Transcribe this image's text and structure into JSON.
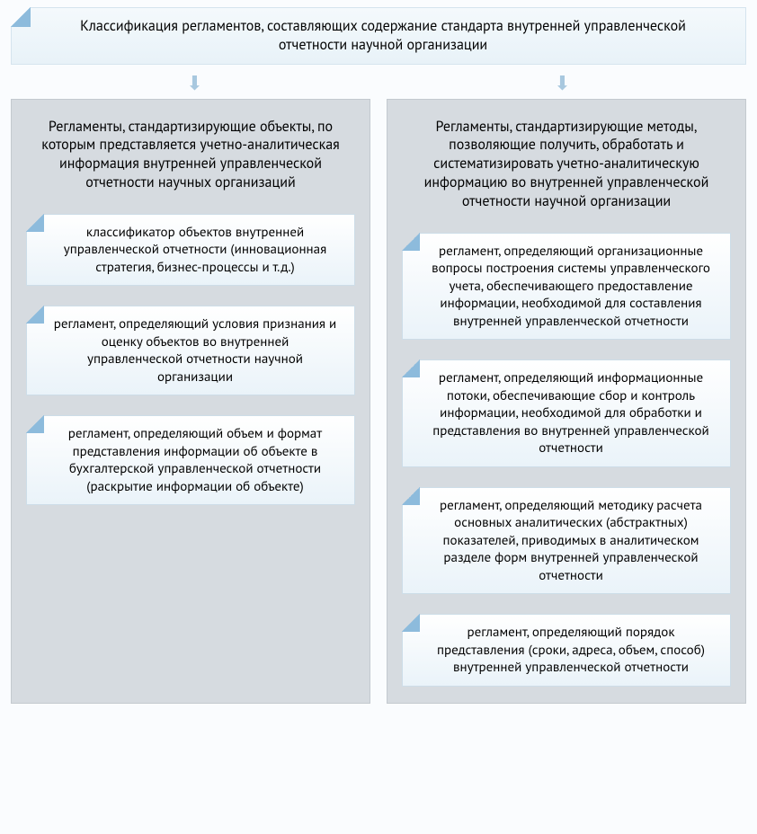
{
  "diagram": {
    "type": "tree",
    "background_color": "#fafcfe",
    "top_box": {
      "text": "Классификация регламентов, составляющих содержание стандарта внутренней управленческой отчетности научной организации",
      "bg_gradient": [
        "#f4f9fc",
        "#e8f2f8"
      ],
      "border_color": "#d5e4ee",
      "corner_color": "#8dbbdc",
      "font_size": 16
    },
    "arrow_color": "#a8c8df",
    "column_bg": "#d6dbe0",
    "column_border": "#c3c9cf",
    "item_bg_gradient": [
      "#ffffff",
      "#eaf3f9"
    ],
    "item_border": "#cddde8",
    "item_corner_color": "#8dbbdc",
    "item_font_size": 15,
    "columns": [
      {
        "header": "Регламенты, стандартизирующие объекты, по которым представляется учетно-аналитическая информация внутренней управленческой отчетности научных организаций",
        "items": [
          "классификатор объектов внутренней управленческой отчетности (инновационная стратегия, бизнес-процессы и т.д.)",
          "регламент, определяющий условия признания и оценку объектов во внутренней управленческой отчетности научной организации",
          "регламент, определяющий объем и формат представления информации об объекте в бухгалтерской управленческой отчетности (раскрытие информации об объекте)"
        ]
      },
      {
        "header": "Регламенты, стандартизирующие методы, позволяющие получить, обработать и систематизировать учетно-аналитическую информацию во внутренней управленческой отчетности научной организации",
        "items": [
          "регламент, определяющий организационные вопросы построения системы управленческого учета, обеспечивающего предоставление информации, необходимой для составления внутренней управленческой отчетности",
          "регламент, определяющий информационные потоки, обеспечивающие сбор и контроль информации, необходимой для обработки и представления во внутренней управленческой отчетности",
          "регламент, определяющий методику расчета основных аналитических (абстрактных) показателей, приводимых в аналитическом разделе форм внутренней управленческой отчетности",
          "регламент, определяющий порядок представления (сроки, адреса, объем, способ) внутренней управленческой отчетности"
        ]
      }
    ]
  }
}
